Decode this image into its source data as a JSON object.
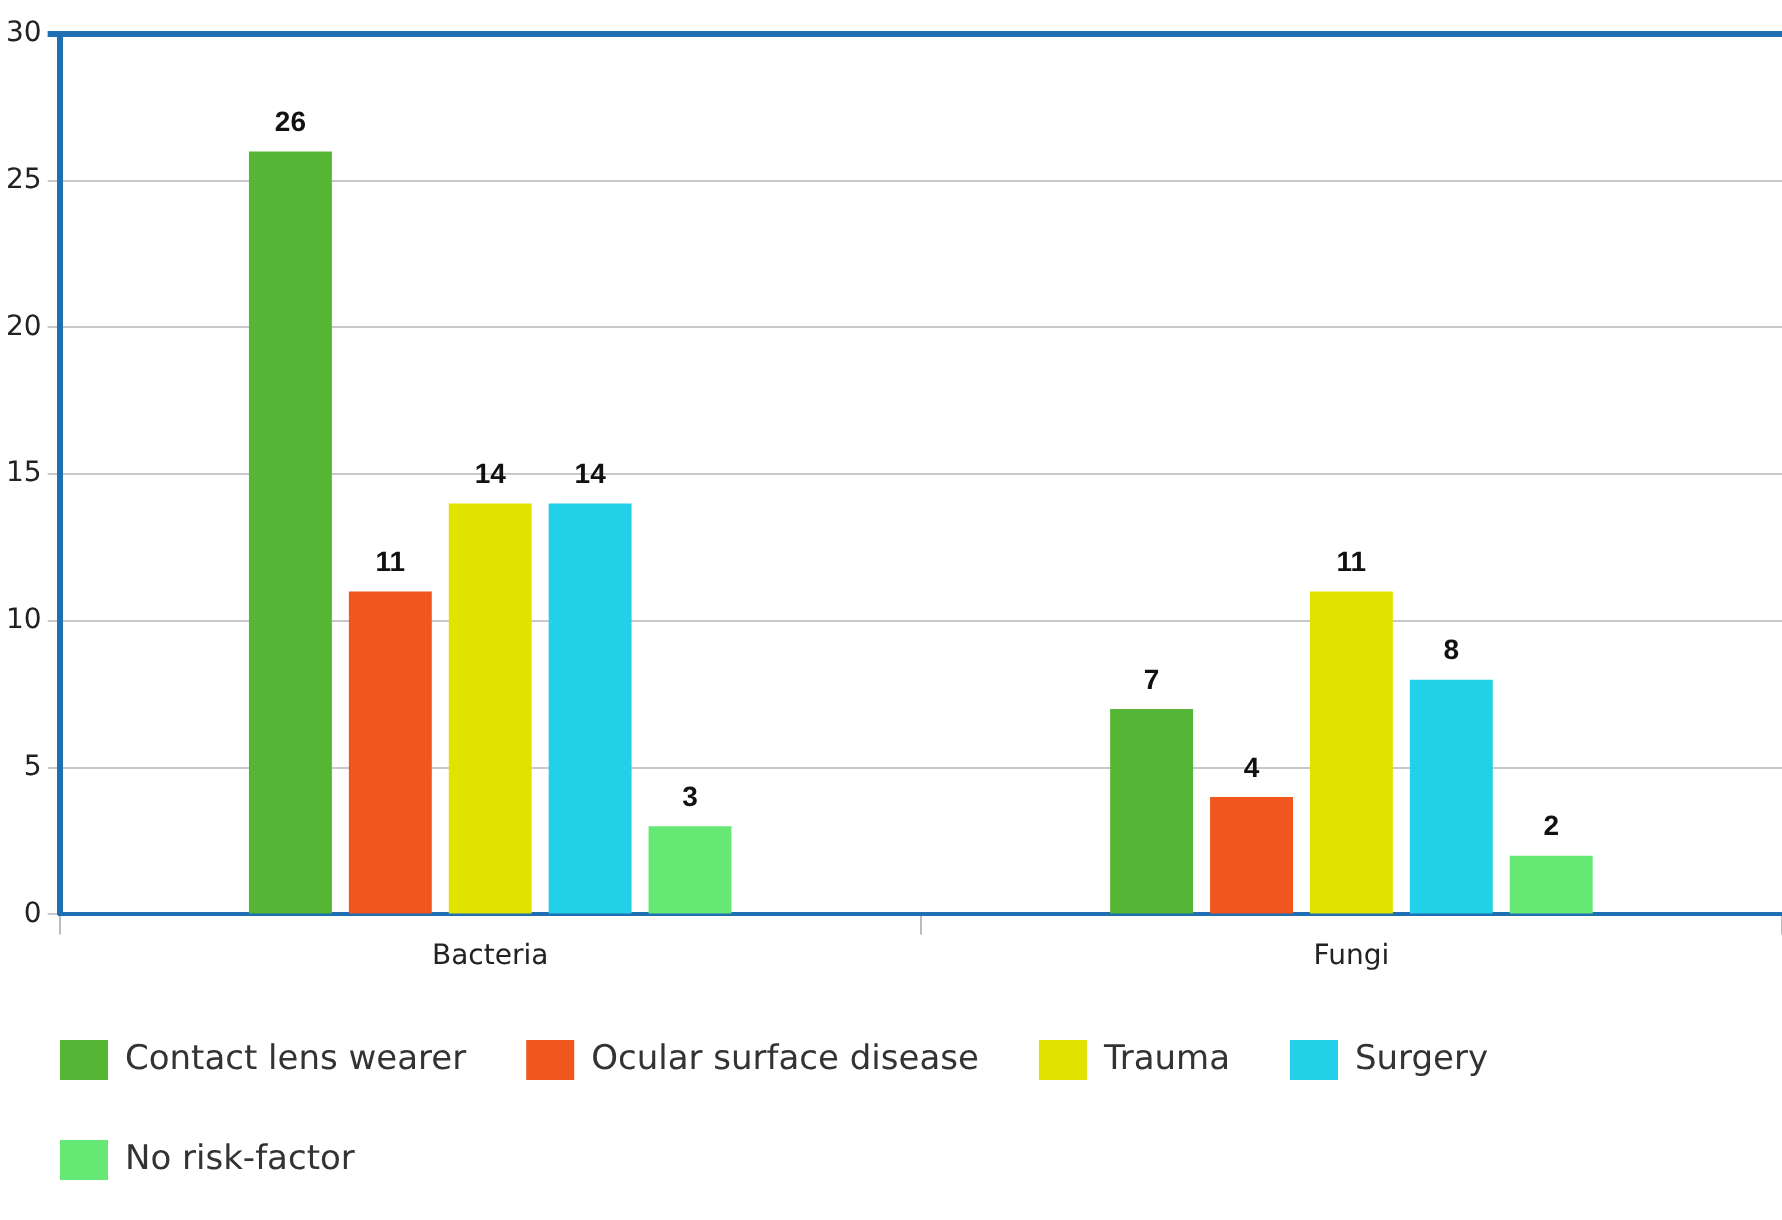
{
  "chart_data": {
    "type": "bar",
    "categories": [
      "Bacteria",
      "Fungi"
    ],
    "series": [
      {
        "name": "Contact lens wearer",
        "color": "#55b535",
        "values": [
          26,
          7
        ]
      },
      {
        "name": "Ocular surface disease",
        "color": "#f0561d",
        "values": [
          11,
          4
        ]
      },
      {
        "name": "Trauma",
        "color": "#e2e200",
        "values": [
          14,
          11
        ]
      },
      {
        "name": "Surgery",
        "color": "#22d0e8",
        "values": [
          14,
          8
        ]
      },
      {
        "name": "No risk-factor",
        "color": "#66e874",
        "values": [
          3,
          2
        ]
      }
    ],
    "ylim": [
      0,
      30
    ],
    "yticks": [
      0,
      5,
      10,
      15,
      20,
      25,
      30
    ],
    "grid": "y",
    "legend": "bottom",
    "data_labels": true
  }
}
